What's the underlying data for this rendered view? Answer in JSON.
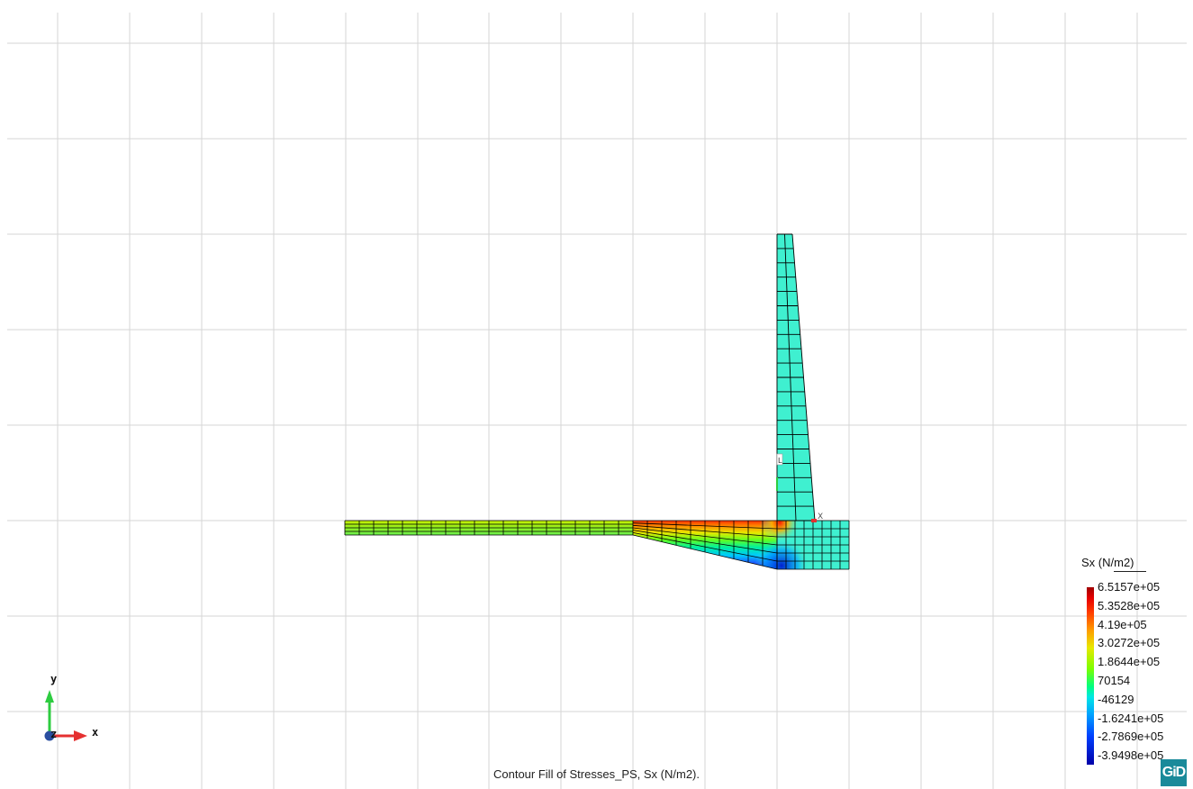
{
  "caption": "Contour Fill of Stresses_PS, Sx (N/m2).",
  "legend": {
    "title": "Sx (N/m2)",
    "values": [
      "6.5157e+05",
      "5.3528e+05",
      "4.19e+05",
      "3.0272e+05",
      "1.8644e+05",
      "70154",
      "-46129",
      "-1.6241e+05",
      "-2.7869e+05",
      "-3.9498e+05"
    ]
  },
  "axes": {
    "x_label": "x",
    "y_label": "y",
    "z_label": "z"
  },
  "node_labels": {
    "origin_marker": "L",
    "corner_marker": "X"
  },
  "logo": "GiD",
  "colors": {
    "grid": "#d6d6d6",
    "mesh_line": "#000000",
    "neutral_fill": "#3ff0d0",
    "axis_x": "#e53030",
    "axis_y": "#2ecc40",
    "axis_z": "#2a4ea0"
  },
  "icons": [
    "xyz-axis-triad-icon",
    "gid-logo-icon"
  ]
}
